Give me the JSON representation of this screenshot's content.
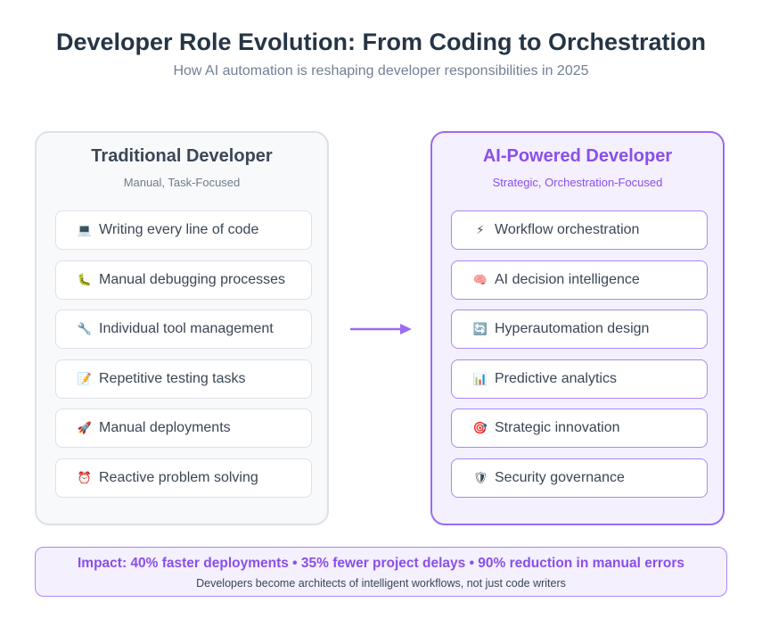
{
  "header": {
    "title": "Developer Role Evolution: From Coding to Orchestration",
    "subtitle": "How AI automation is reshaping developer responsibilities in 2025"
  },
  "traditional": {
    "title": "Traditional Developer",
    "subtitle": "Manual, Task-Focused",
    "items": [
      {
        "icon": "💻",
        "icon_name": "laptop-icon",
        "label": "Writing every line of code"
      },
      {
        "icon": "🐛",
        "icon_name": "bug-icon",
        "label": "Manual debugging processes"
      },
      {
        "icon": "🔧",
        "icon_name": "wrench-icon",
        "label": "Individual tool management"
      },
      {
        "icon": "📝",
        "icon_name": "memo-icon",
        "label": "Repetitive testing tasks"
      },
      {
        "icon": "🚀",
        "icon_name": "rocket-icon",
        "label": "Manual deployments"
      },
      {
        "icon": "⏰",
        "icon_name": "alarm-clock-icon",
        "label": "Reactive problem solving"
      }
    ]
  },
  "ai_powered": {
    "title": "AI-Powered Developer",
    "subtitle": "Strategic, Orchestration-Focused",
    "items": [
      {
        "icon": "⚡",
        "icon_name": "lightning-icon",
        "label": "Workflow orchestration"
      },
      {
        "icon": "🧠",
        "icon_name": "brain-icon",
        "label": "AI decision intelligence"
      },
      {
        "icon": "🔄",
        "icon_name": "refresh-icon",
        "label": "Hyperautomation design"
      },
      {
        "icon": "📊",
        "icon_name": "bar-chart-icon",
        "label": "Predictive analytics"
      },
      {
        "icon": "🎯",
        "icon_name": "target-icon",
        "label": "Strategic innovation"
      },
      {
        "icon": "🛡",
        "icon_name": "shield-icon",
        "label": "Security governance"
      }
    ]
  },
  "impact": {
    "headline": "Impact: 40% faster deployments • 35% fewer project delays • 90% reduction in manual errors",
    "note": "Developers become architects of intelligent workflows, not just code writers"
  },
  "colors": {
    "accent": "#8a4fe8",
    "arrow": "#9b6bf0",
    "title_text": "#263545"
  }
}
